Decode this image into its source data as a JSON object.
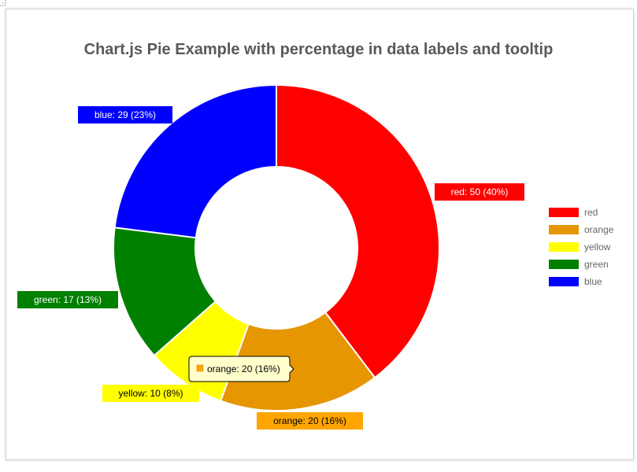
{
  "chart_data": {
    "type": "pie",
    "variant": "doughnut",
    "title": "Chart.js Pie Example with percentage in data labels and tooltip",
    "categories": [
      "red",
      "orange",
      "yellow",
      "green",
      "blue"
    ],
    "values": [
      50,
      20,
      10,
      17,
      29
    ],
    "colors": [
      "#ff0000",
      "#e69600",
      "#ffff00",
      "#008000",
      "#0000ff"
    ],
    "data_labels": [
      "red: 50 (40%)",
      "orange: 20 (16%)",
      "yellow: 10 (8%)",
      "green: 17 (13%)",
      "blue: 29 (23%)"
    ],
    "label_colors": [
      "#ff0000",
      "#ffa500",
      "#ffff00",
      "#008000",
      "#0000ff"
    ],
    "label_text_colors": [
      "#ffffff",
      "#000000",
      "#000000",
      "#ffffff",
      "#ffffff"
    ],
    "legend": {
      "position": "right",
      "items": [
        "red",
        "orange",
        "yellow",
        "green",
        "blue"
      ]
    },
    "tooltip": {
      "text": "orange: 20 (16%)",
      "series": "orange",
      "swatch_color": "#ffa500"
    }
  }
}
